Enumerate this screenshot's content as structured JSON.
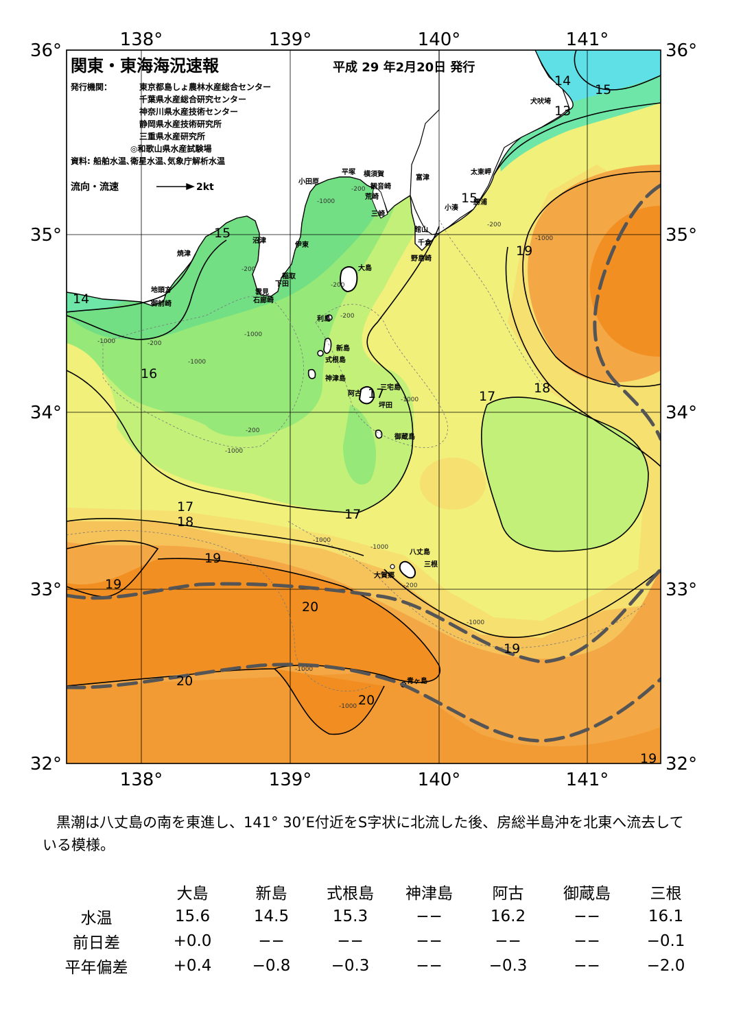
{
  "header": {
    "title": "関東・東海海況速報",
    "issue_date": "平成 29 年2月20日 発行",
    "issuers_label": "発行機関：",
    "issuers": [
      "東京都島しょ農林水産総合センター",
      "千葉県水産総合研究センター",
      "神奈川県水産技術センター",
      "静岡県水産技術研究所",
      "三重県水産研究所",
      "◎和歌山県水産試験場"
    ],
    "sources": "資料: 船舶水温､衛星水温､気象庁解析水温",
    "legend_current": "流向・流速",
    "legend_speed": "2kt"
  },
  "axes": {
    "lon_labels": [
      "138°",
      "139°",
      "140°",
      "141°"
    ],
    "lat_labels": [
      "36°",
      "35°",
      "34°",
      "33°",
      "32°"
    ]
  },
  "isotherm_labels": [
    "14",
    "15",
    "13",
    "15",
    "15",
    "14",
    "19",
    "16",
    "17",
    "18",
    "17",
    "18",
    "17",
    "17",
    "19",
    "19",
    "20",
    "19",
    "20",
    "20",
    "19"
  ],
  "depth_labels": [
    "-200",
    "-1000"
  ],
  "place_names": {
    "inubozaki": "犬吠埼",
    "taitozaki": "太東岬",
    "katsuura": "勝浦",
    "kominato": "小湊",
    "tateyama": "館山",
    "chikura": "千倉",
    "nojimazaki": "野島崎",
    "futtsu": "富津",
    "yokosuka": "横須賀",
    "kannonzaki": "観音崎",
    "arasaki": "荒崎",
    "misaki": "三崎",
    "hiratsuka": "平塚",
    "odawara": "小田原",
    "numazu": "沼津",
    "ito": "伊東",
    "inatori": "稲取",
    "shimoda": "下田",
    "kumomi": "雲見",
    "irozaki": "石廊崎",
    "yaizu": "焼津",
    "jitogata": "地頭方",
    "omaezaki": "御前崎",
    "oshima": "大島",
    "toshima": "利島",
    "niijima": "新島",
    "shikinejima": "式根島",
    "kozushima": "神津島",
    "miyakejima": "三宅島",
    "ako": "阿古",
    "tsubota": "坪田",
    "mikurajima": "御蔵島",
    "hachijojima": "八丈島",
    "mitsune": "三根",
    "okago": "大賀郷",
    "aogashima": "青ヶ島"
  },
  "summary": "黒潮は八丈島の南を東進し、141° 30’E付近をS字状に北流した後、房総半島沖を北東へ流去している模様。",
  "observations": {
    "stations": [
      "大島",
      "新島",
      "式根島",
      "神津島",
      "阿古",
      "御蔵島",
      "三根"
    ],
    "rows": [
      {
        "label": "水温",
        "values": [
          "15.6",
          "14.5",
          "15.3",
          "−−",
          "16.2",
          "−−",
          "16.1"
        ]
      },
      {
        "label": "前日差",
        "values": [
          "+0.0",
          "−−",
          "−−",
          "−−",
          "−−",
          "−−",
          "−0.1"
        ]
      },
      {
        "label": "平年偏差",
        "values": [
          "+0.4",
          "−0.8",
          "−0.3",
          "−−",
          "−0.3",
          "−−",
          "−2.0"
        ]
      }
    ]
  },
  "colors": {
    "land": "#ffffff",
    "t13": "#5ee0e6",
    "t14": "#6ee6a8",
    "t15": "#72df84",
    "t16": "#96e878",
    "t17": "#c2f078",
    "t18": "#f0f07a",
    "t18b": "#f6e070",
    "t19": "#f6c35a",
    "t19b": "#f3a745",
    "t20": "#f28f22",
    "kuroshio": "#555555"
  }
}
